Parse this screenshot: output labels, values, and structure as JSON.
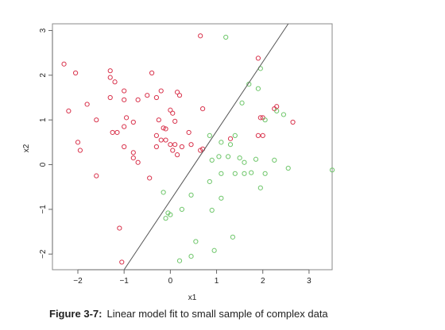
{
  "caption": {
    "label": "Figure 3-7:",
    "text": "Linear model fit to small sample of complex data"
  },
  "chart_data": {
    "type": "scatter",
    "title": "",
    "xlabel": "x1",
    "ylabel": "x2",
    "xlim": [
      -2.55,
      3.5
    ],
    "ylim": [
      -2.35,
      3.15
    ],
    "xticks": [
      -2,
      -1,
      0,
      1,
      2,
      3
    ],
    "yticks": [
      -2,
      -1,
      0,
      1,
      2,
      3
    ],
    "grid": false,
    "colors": {
      "red": "#d9344d",
      "green": "#6ec66a",
      "line": "#555555"
    },
    "fit_line": {
      "x": [
        -1.0,
        2.55
      ],
      "y": [
        -2.35,
        3.15
      ]
    },
    "series": [
      {
        "color": "red",
        "points": [
          [
            0.65,
            2.88
          ],
          [
            -2.3,
            2.25
          ],
          [
            -2.05,
            2.05
          ],
          [
            -1.3,
            2.1
          ],
          [
            -1.3,
            1.95
          ],
          [
            -1.2,
            1.85
          ],
          [
            -1.0,
            1.65
          ],
          [
            -0.4,
            2.05
          ],
          [
            -0.2,
            1.65
          ],
          [
            0.15,
            1.62
          ],
          [
            0.2,
            1.55
          ],
          [
            -2.2,
            1.2
          ],
          [
            -1.8,
            1.35
          ],
          [
            -1.6,
            1.0
          ],
          [
            -1.3,
            1.5
          ],
          [
            -1.0,
            1.45
          ],
          [
            -0.7,
            1.45
          ],
          [
            -0.5,
            1.55
          ],
          [
            -0.3,
            1.5
          ],
          [
            0.0,
            1.22
          ],
          [
            0.05,
            1.15
          ],
          [
            0.7,
            1.25
          ],
          [
            -0.95,
            1.05
          ],
          [
            -0.8,
            0.95
          ],
          [
            -0.25,
            1.0
          ],
          [
            -0.15,
            0.82
          ],
          [
            -0.1,
            0.8
          ],
          [
            0.1,
            0.97
          ],
          [
            -1.0,
            0.85
          ],
          [
            -1.15,
            0.72
          ],
          [
            -1.25,
            0.72
          ],
          [
            -0.3,
            0.65
          ],
          [
            -0.2,
            0.55
          ],
          [
            -0.1,
            0.55
          ],
          [
            0.0,
            0.45
          ],
          [
            0.1,
            0.45
          ],
          [
            0.4,
            0.72
          ],
          [
            -2.0,
            0.5
          ],
          [
            -1.95,
            0.32
          ],
          [
            -1.0,
            0.4
          ],
          [
            -0.8,
            0.27
          ],
          [
            -0.8,
            0.15
          ],
          [
            -0.7,
            0.05
          ],
          [
            -0.3,
            0.4
          ],
          [
            0.05,
            0.32
          ],
          [
            0.15,
            0.22
          ],
          [
            0.25,
            0.4
          ],
          [
            0.45,
            0.45
          ],
          [
            0.65,
            0.32
          ],
          [
            0.7,
            0.35
          ],
          [
            -1.6,
            -0.25
          ],
          [
            -0.45,
            -0.3
          ],
          [
            -1.1,
            -1.42
          ],
          [
            -1.05,
            -2.18
          ],
          [
            1.3,
            0.58
          ],
          [
            1.9,
            2.38
          ],
          [
            1.95,
            1.05
          ],
          [
            2.0,
            1.05
          ],
          [
            1.9,
            0.65
          ],
          [
            2.0,
            0.65
          ],
          [
            2.25,
            1.25
          ],
          [
            2.3,
            1.3
          ],
          [
            2.65,
            0.95
          ]
        ]
      },
      {
        "color": "green",
        "points": [
          [
            1.2,
            2.85
          ],
          [
            1.95,
            2.15
          ],
          [
            1.7,
            1.8
          ],
          [
            1.9,
            1.7
          ],
          [
            1.55,
            1.38
          ],
          [
            2.3,
            1.2
          ],
          [
            2.45,
            1.12
          ],
          [
            2.05,
            1.0
          ],
          [
            0.85,
            0.65
          ],
          [
            1.4,
            0.65
          ],
          [
            1.3,
            0.45
          ],
          [
            1.1,
            0.5
          ],
          [
            0.9,
            0.1
          ],
          [
            1.05,
            0.18
          ],
          [
            1.25,
            0.18
          ],
          [
            1.5,
            0.15
          ],
          [
            1.6,
            0.05
          ],
          [
            1.85,
            0.12
          ],
          [
            2.25,
            0.1
          ],
          [
            1.1,
            -0.2
          ],
          [
            1.4,
            -0.2
          ],
          [
            1.6,
            -0.2
          ],
          [
            1.75,
            -0.18
          ],
          [
            2.05,
            -0.2
          ],
          [
            2.55,
            -0.08
          ],
          [
            3.5,
            -0.12
          ],
          [
            0.85,
            -0.38
          ],
          [
            1.95,
            -0.52
          ],
          [
            -0.15,
            -0.62
          ],
          [
            0.45,
            -0.68
          ],
          [
            1.1,
            -0.75
          ],
          [
            0.25,
            -1.0
          ],
          [
            -0.05,
            -1.08
          ],
          [
            0.0,
            -1.12
          ],
          [
            -0.1,
            -1.2
          ],
          [
            0.9,
            -1.02
          ],
          [
            1.35,
            -1.62
          ],
          [
            0.55,
            -1.72
          ],
          [
            0.95,
            -1.92
          ],
          [
            0.45,
            -2.05
          ],
          [
            0.2,
            -2.15
          ]
        ]
      }
    ]
  }
}
